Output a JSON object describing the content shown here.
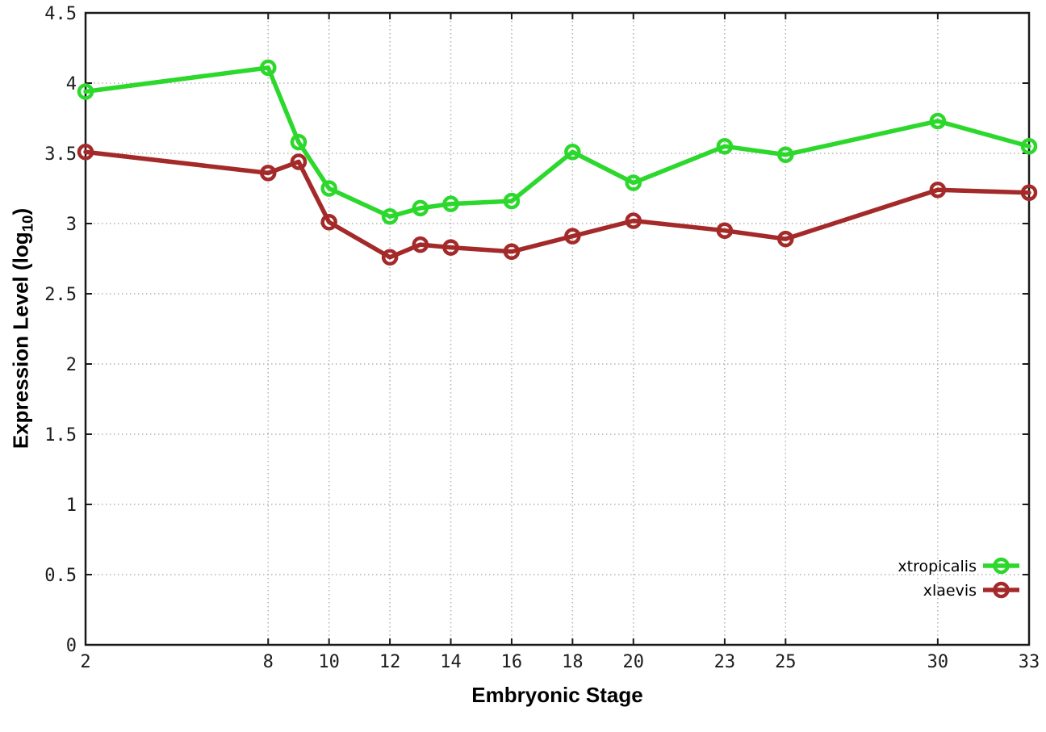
{
  "chart_data": {
    "type": "line",
    "title": "",
    "xlabel": "Embryonic Stage",
    "ylabel": {
      "text": "Expression Level (log",
      "sub": "10",
      "suffix": ")"
    },
    "xlim": [
      2,
      33
    ],
    "ylim": [
      0,
      4.5
    ],
    "grid": "dotted",
    "legend_position": "bottom-right",
    "x_ticks": [
      "2",
      "8",
      "10",
      "12",
      "14",
      "16",
      "18",
      "20",
      "23",
      "25",
      "30",
      "33"
    ],
    "y_ticks": [
      "0",
      "0.5",
      "1",
      "1.5",
      "2",
      "2.5",
      "3",
      "3.5",
      "4",
      "4.5"
    ],
    "x": [
      2,
      8,
      9,
      10,
      12,
      13,
      14,
      16,
      18,
      20,
      23,
      25,
      30,
      33
    ],
    "series": [
      {
        "name": "xtropicalis",
        "color": "#2cd82c",
        "marker": "open-circle",
        "values": [
          3.94,
          4.11,
          3.58,
          3.25,
          3.05,
          3.11,
          3.14,
          3.16,
          3.51,
          3.29,
          3.55,
          3.49,
          3.73,
          3.55
        ]
      },
      {
        "name": "xlaevis",
        "color": "#a42a2a",
        "marker": "open-circle",
        "values": [
          3.51,
          3.36,
          3.44,
          3.01,
          2.76,
          2.85,
          2.83,
          2.8,
          2.91,
          3.02,
          2.95,
          2.89,
          3.24,
          3.22
        ]
      }
    ],
    "style": {
      "grid_color": "#b3b3b3",
      "axis_color": "#1a1a1a",
      "background": "#ffffff"
    }
  }
}
